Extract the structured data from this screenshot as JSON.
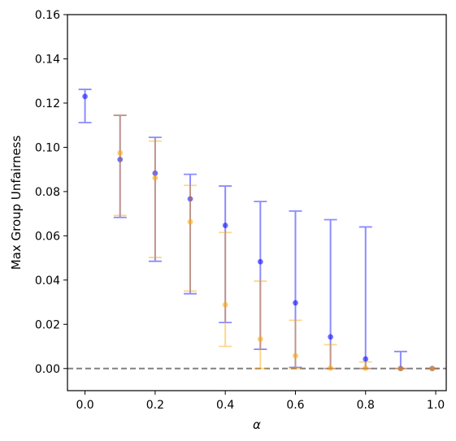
{
  "chart_data": {
    "type": "scatter",
    "title": "",
    "xlabel": "α",
    "ylabel": "Max Group Unfairness",
    "xlim": [
      -0.05,
      1.03
    ],
    "ylim": [
      -0.01,
      0.16
    ],
    "x_ticks": [
      0.0,
      0.2,
      0.4,
      0.6,
      0.8,
      1.0
    ],
    "x_tick_labels": [
      "0.0",
      "0.2",
      "0.4",
      "0.6",
      "0.8",
      "1.0"
    ],
    "y_ticks": [
      0.0,
      0.02,
      0.04,
      0.06,
      0.08,
      0.1,
      0.12,
      0.14,
      0.16
    ],
    "y_tick_labels": [
      "0.00",
      "0.02",
      "0.04",
      "0.06",
      "0.08",
      "0.10",
      "0.12",
      "0.14",
      "0.16"
    ],
    "grid": false,
    "reference_line": {
      "y": 0.0,
      "style": "dashed",
      "color": "#808080"
    },
    "series": [
      {
        "color": "#0000ff",
        "x": [
          0.0,
          0.1,
          0.2,
          0.3,
          0.4,
          0.5,
          0.6,
          0.7,
          0.8,
          0.9,
          0.99
        ],
        "y": [
          0.123,
          0.0945,
          0.0883,
          0.0767,
          0.0647,
          0.0483,
          0.0297,
          0.0143,
          0.0043,
          0.0,
          0.0
        ],
        "lower": [
          0.1112,
          0.0683,
          0.0485,
          0.0338,
          0.0208,
          0.0087,
          0.0005,
          0.0,
          0.0,
          0.0,
          0.0
        ],
        "upper": [
          0.1262,
          0.1145,
          0.1045,
          0.0878,
          0.0825,
          0.0755,
          0.0712,
          0.0673,
          0.064,
          0.0077,
          0.0
        ]
      },
      {
        "color": "#ffa500",
        "x": [
          0.1,
          0.2,
          0.3,
          0.4,
          0.5,
          0.6,
          0.7,
          0.8,
          0.9,
          0.99
        ],
        "y": [
          0.0975,
          0.0862,
          0.0663,
          0.0288,
          0.0133,
          0.0058,
          0.0002,
          0.0002,
          0.0,
          0.0
        ],
        "lower": [
          0.0692,
          0.0502,
          0.035,
          0.01,
          0.0,
          0.0,
          0.0,
          0.0,
          0.0,
          0.0
        ],
        "upper": [
          0.1145,
          0.1028,
          0.0828,
          0.0615,
          0.0395,
          0.0218,
          0.0108,
          0.003,
          0.0,
          0.0
        ]
      }
    ]
  }
}
